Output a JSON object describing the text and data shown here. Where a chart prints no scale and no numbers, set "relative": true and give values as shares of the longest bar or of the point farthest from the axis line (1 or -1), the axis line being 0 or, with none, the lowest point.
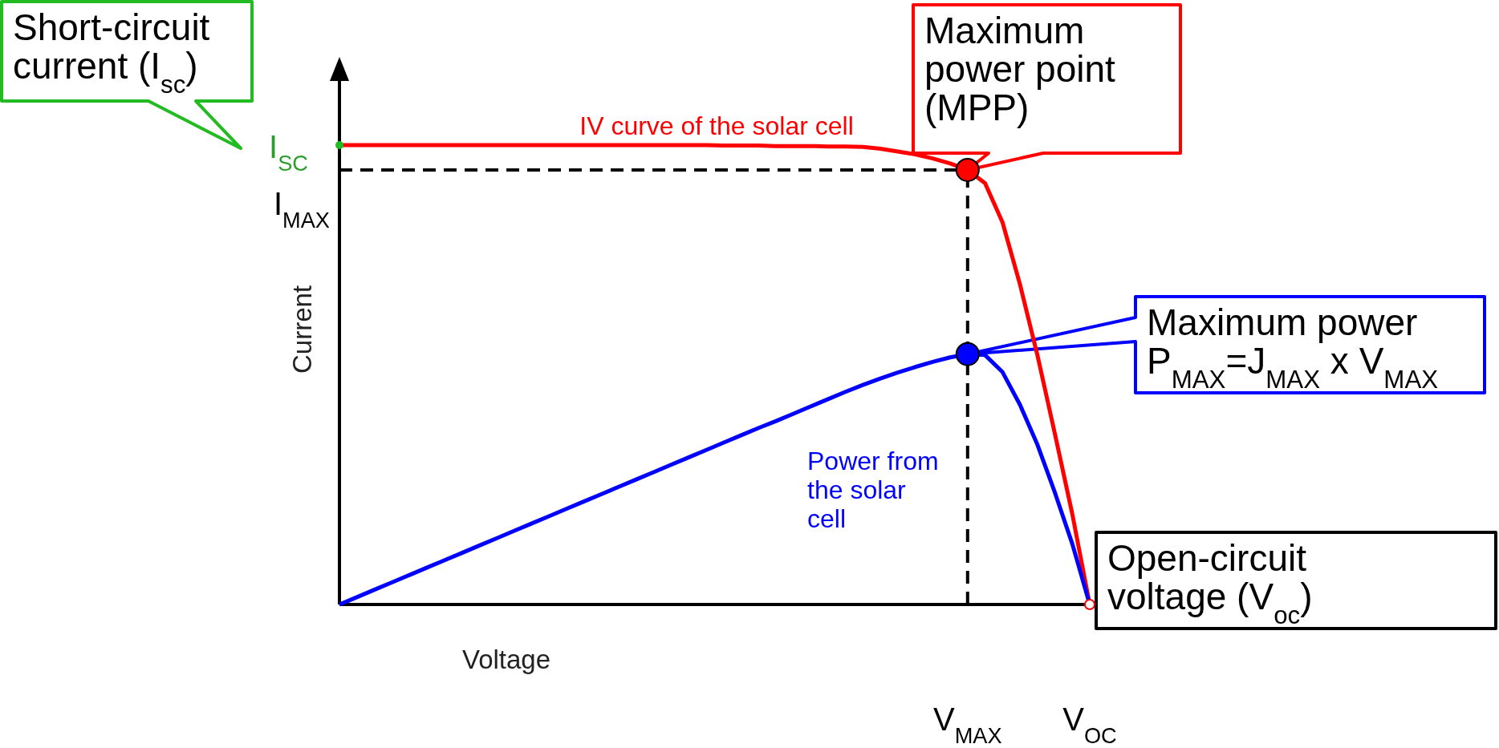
{
  "chart_data": {
    "type": "line",
    "relative": true,
    "xlabel": "Voltage",
    "ylabel": "Current",
    "categories": [
      null,
      null,
      null,
      null,
      null,
      null,
      null,
      null,
      null,
      null,
      null,
      null,
      null,
      null,
      null,
      null,
      null,
      null,
      null,
      null,
      null,
      null,
      null,
      null,
      null,
      null,
      null,
      null,
      null,
      null,
      null,
      null,
      null,
      null,
      null,
      null,
      "V$_{MAX}$",
      null,
      null,
      null,
      null,
      null,
      null,
      "V$_{OC}$"
    ],
    "series": [
      {
        "name": "IV curve of the solar cell",
        "color": "#ff0000",
        "values": [
          1,
          1,
          1,
          1,
          1,
          1,
          1,
          1,
          1,
          1,
          1,
          1,
          1,
          1,
          1,
          1,
          1,
          1,
          1,
          1,
          1,
          1,
          0.999,
          0.999,
          0.999,
          0.998,
          0.998,
          0.998,
          0.997,
          0.997,
          0.996,
          0.992,
          0.986,
          0.98,
          0.971,
          0.96,
          0.946,
          0.917,
          0.832,
          0.697,
          0.543,
          0.372,
          0.197,
          0
        ]
      },
      {
        "name": "Power from the solar cell",
        "color": "#0000ff",
        "values": [
          0,
          0.016,
          0.032,
          0.048,
          0.064,
          0.08,
          0.096,
          0.112,
          0.128,
          0.144,
          0.16,
          0.176,
          0.192,
          0.208,
          0.224,
          0.24,
          0.256,
          0.272,
          0.288,
          0.304,
          0.32,
          0.336,
          0.352,
          0.368,
          0.384,
          0.399,
          0.415,
          0.431,
          0.447,
          0.463,
          0.478,
          0.492,
          0.505,
          0.517,
          0.528,
          0.538,
          0.545,
          0.543,
          0.506,
          0.435,
          0.348,
          0.244,
          0.132,
          0
        ]
      }
    ],
    "ref_lines": [
      {
        "axis": "y",
        "value": 0.946,
        "label": "I$_{MAX}$",
        "color": "#000000",
        "line_style": "dashed"
      },
      {
        "axis": "x",
        "value": "V$_{MAX}$",
        "color": "#000000",
        "line_style": "dashed"
      }
    ],
    "annotations": [
      "Short-circuit current (I$_{sc}$)",
      {
        "text": "Maximum power point (MPP)",
        "x": "V$_{MAX}$",
        "y": 0.946
      },
      "Maximum power P$_{MAX}$=J$_{MAX}$ x V$_{MAX}$",
      {
        "text": "Open-circuit voltage (V$_{oc}$)",
        "x": "V$_{OC}$",
        "y": 0
      },
      "I$_{SC}$"
    ]
  }
}
